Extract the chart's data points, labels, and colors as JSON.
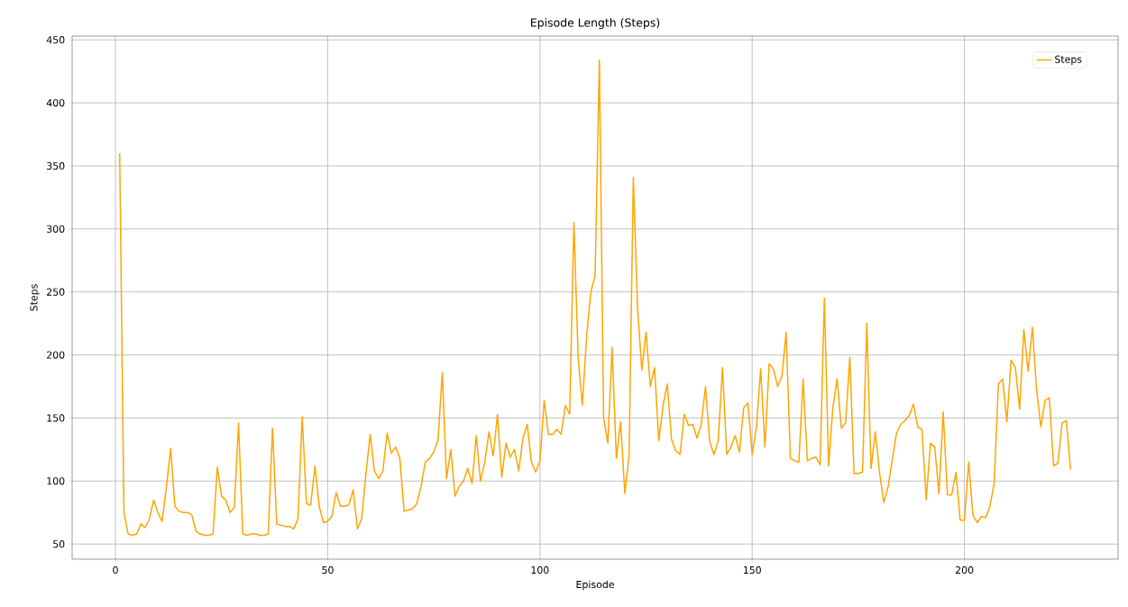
{
  "chart_data": {
    "type": "line",
    "title": "Episode Length (Steps)",
    "xlabel": "Episode",
    "ylabel": "Steps",
    "xlim": [
      -10.2,
      236.2
    ],
    "ylim": [
      38,
      453
    ],
    "xticks": [
      0,
      50,
      100,
      150,
      200
    ],
    "yticks": [
      50,
      100,
      150,
      200,
      250,
      300,
      350,
      400,
      450
    ],
    "grid": true,
    "legend": "top right",
    "series": [
      {
        "name": "Steps",
        "color": "#ffa500",
        "x": [
          1,
          2,
          3,
          4,
          5,
          6,
          7,
          8,
          9,
          10,
          11,
          12,
          13,
          14,
          15,
          16,
          17,
          18,
          19,
          20,
          21,
          22,
          23,
          24,
          25,
          26,
          27,
          28,
          29,
          30,
          31,
          32,
          33,
          34,
          35,
          36,
          37,
          38,
          39,
          40,
          41,
          42,
          43,
          44,
          45,
          46,
          47,
          48,
          49,
          50,
          51,
          52,
          53,
          54,
          55,
          56,
          57,
          58,
          59,
          60,
          61,
          62,
          63,
          64,
          65,
          66,
          67,
          68,
          69,
          70,
          71,
          72,
          73,
          74,
          75,
          76,
          77,
          78,
          79,
          80,
          81,
          82,
          83,
          84,
          85,
          86,
          87,
          88,
          89,
          90,
          91,
          92,
          93,
          94,
          95,
          96,
          97,
          98,
          99,
          100,
          101,
          102,
          103,
          104,
          105,
          106,
          107,
          108,
          109,
          110,
          111,
          112,
          113,
          114,
          115,
          116,
          117,
          118,
          119,
          120,
          121,
          122,
          123,
          124,
          125,
          126,
          127,
          128,
          129,
          130,
          131,
          132,
          133,
          134,
          135,
          136,
          137,
          138,
          139,
          140,
          141,
          142,
          143,
          144,
          145,
          146,
          147,
          148,
          149,
          150,
          151,
          152,
          153,
          154,
          155,
          156,
          157,
          158,
          159,
          160,
          161,
          162,
          163,
          164,
          165,
          166,
          167,
          168,
          169,
          170,
          171,
          172,
          173,
          174,
          175,
          176,
          177,
          178,
          179,
          180,
          181,
          182,
          183,
          184,
          185,
          186,
          187,
          188,
          189,
          190,
          191,
          192,
          193,
          194,
          195,
          196,
          197,
          198,
          199,
          200,
          201,
          202,
          203,
          204,
          205,
          206,
          207,
          208,
          209,
          210,
          211,
          212,
          213,
          214,
          215,
          216,
          217,
          218,
          219,
          220,
          221,
          222,
          223,
          224,
          225
        ],
        "values": [
          360,
          75,
          58,
          57,
          58,
          66,
          63,
          70,
          85,
          75,
          68,
          95,
          126,
          80,
          76,
          75,
          75,
          73,
          60,
          58,
          57,
          57,
          58,
          111,
          88,
          85,
          75,
          79,
          146,
          58,
          57,
          58,
          58,
          57,
          57,
          58,
          142,
          66,
          65,
          64,
          64,
          62,
          70,
          151,
          82,
          81,
          112,
          80,
          67,
          68,
          72,
          91,
          80,
          80,
          81,
          93,
          62,
          70,
          105,
          137,
          108,
          102,
          108,
          138,
          122,
          127,
          118,
          76,
          77,
          78,
          82,
          96,
          115,
          118,
          123,
          133,
          186,
          102,
          125,
          88,
          96,
          100,
          110,
          98,
          136,
          100,
          115,
          139,
          120,
          153,
          103,
          130,
          119,
          125,
          108,
          134,
          145,
          115,
          107,
          116,
          164,
          137,
          137,
          141,
          137,
          160,
          153,
          305,
          198,
          160,
          215,
          250,
          263,
          434,
          150,
          130,
          206,
          118,
          147,
          90,
          120,
          341,
          237,
          188,
          218,
          175,
          190,
          132,
          160,
          177,
          133,
          124,
          121,
          153,
          144,
          145,
          134,
          145,
          175,
          131,
          121,
          132,
          190,
          121,
          127,
          136,
          123,
          158,
          162,
          121,
          143,
          189,
          127,
          193,
          189,
          175,
          183,
          218,
          118,
          116,
          115,
          181,
          116,
          118,
          119,
          113,
          245,
          112,
          158,
          181,
          142,
          146,
          198,
          106,
          106,
          107,
          225,
          110,
          139,
          107,
          83,
          95,
          117,
          138,
          145,
          148,
          152,
          161,
          143,
          141,
          85,
          130,
          127,
          90,
          155,
          89,
          89,
          107,
          69,
          69,
          115,
          73,
          67,
          72,
          71,
          80,
          98,
          177,
          181,
          147,
          196,
          190,
          157,
          220,
          187,
          222,
          172,
          143,
          164,
          166,
          112,
          114,
          146,
          148,
          109
        ]
      }
    ]
  }
}
